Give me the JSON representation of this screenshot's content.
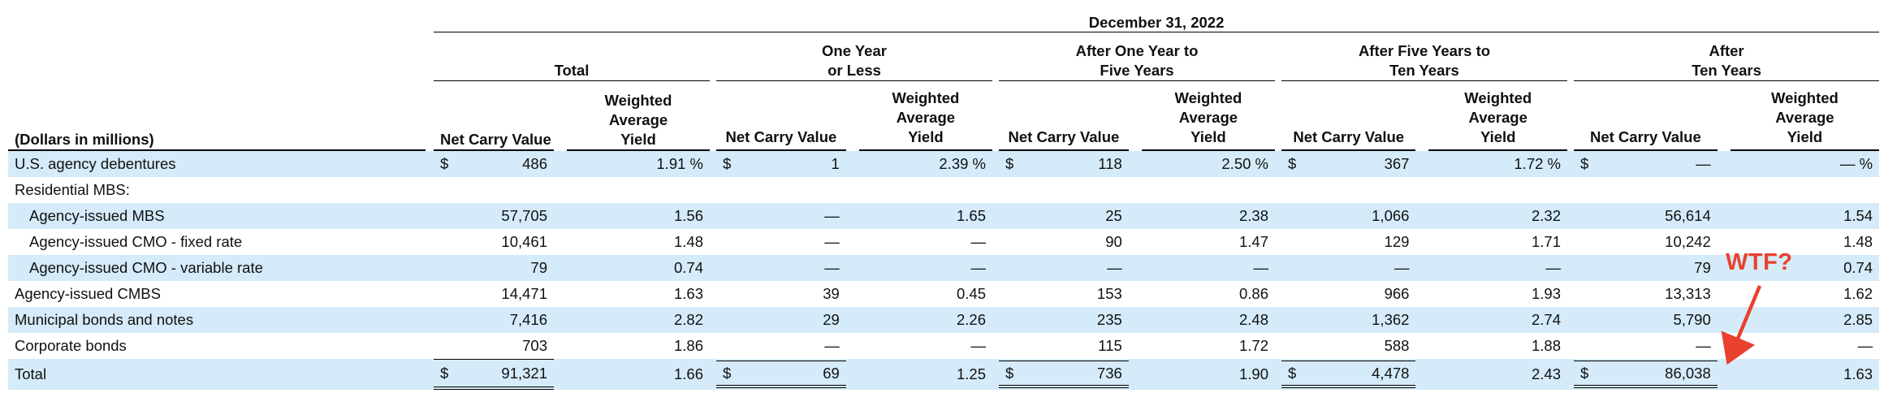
{
  "header": {
    "date": "December 31, 2022",
    "stub_label": "(Dollars in millions)",
    "groups": [
      {
        "line1": "",
        "line2": "Total"
      },
      {
        "line1": "One Year",
        "line2": "or Less"
      },
      {
        "line1": "After One Year to",
        "line2": "Five Years"
      },
      {
        "line1": "After Five Years to",
        "line2": "Ten Years"
      },
      {
        "line1": "After",
        "line2": "Ten Years"
      }
    ],
    "col_ncv": "Net Carry Value",
    "col_yield_l1": "Weighted",
    "col_yield_l2": "Average",
    "col_yield_l3": "Yield"
  },
  "rows": [
    {
      "label": "U.S. agency debentures",
      "indent": false,
      "shaded": true,
      "cells": [
        [
          "$",
          "486",
          "1.91 %"
        ],
        [
          "$",
          "1",
          "2.39 %"
        ],
        [
          "$",
          "118",
          "2.50 %"
        ],
        [
          "$",
          "367",
          "1.72 %"
        ],
        [
          "$",
          "—",
          "— %"
        ]
      ]
    },
    {
      "label": "Residential MBS:",
      "indent": false,
      "shaded": false,
      "cells": [
        [
          "",
          "",
          ""
        ],
        [
          "",
          "",
          ""
        ],
        [
          "",
          "",
          ""
        ],
        [
          "",
          "",
          ""
        ],
        [
          "",
          "",
          ""
        ]
      ]
    },
    {
      "label": "Agency-issued MBS",
      "indent": true,
      "shaded": true,
      "cells": [
        [
          "",
          "57,705",
          "1.56"
        ],
        [
          "",
          "—",
          "1.65"
        ],
        [
          "",
          "25",
          "2.38"
        ],
        [
          "",
          "1,066",
          "2.32"
        ],
        [
          "",
          "56,614",
          "1.54"
        ]
      ]
    },
    {
      "label": "Agency-issued CMO - fixed rate",
      "indent": true,
      "shaded": false,
      "cells": [
        [
          "",
          "10,461",
          "1.48"
        ],
        [
          "",
          "—",
          "—"
        ],
        [
          "",
          "90",
          "1.47"
        ],
        [
          "",
          "129",
          "1.71"
        ],
        [
          "",
          "10,242",
          "1.48"
        ]
      ]
    },
    {
      "label": "Agency-issued CMO - variable rate",
      "indent": true,
      "shaded": true,
      "cells": [
        [
          "",
          "79",
          "0.74"
        ],
        [
          "",
          "—",
          "—"
        ],
        [
          "",
          "—",
          "—"
        ],
        [
          "",
          "—",
          "—"
        ],
        [
          "",
          "79",
          "0.74"
        ]
      ]
    },
    {
      "label": "Agency-issued CMBS",
      "indent": false,
      "shaded": false,
      "cells": [
        [
          "",
          "14,471",
          "1.63"
        ],
        [
          "",
          "39",
          "0.45"
        ],
        [
          "",
          "153",
          "0.86"
        ],
        [
          "",
          "966",
          "1.93"
        ],
        [
          "",
          "13,313",
          "1.62"
        ]
      ]
    },
    {
      "label": "Municipal bonds and notes",
      "indent": false,
      "shaded": true,
      "cells": [
        [
          "",
          "7,416",
          "2.82"
        ],
        [
          "",
          "29",
          "2.26"
        ],
        [
          "",
          "235",
          "2.48"
        ],
        [
          "",
          "1,362",
          "2.74"
        ],
        [
          "",
          "5,790",
          "2.85"
        ]
      ]
    },
    {
      "label": "Corporate bonds",
      "indent": false,
      "shaded": false,
      "cells": [
        [
          "",
          "703",
          "1.86"
        ],
        [
          "",
          "—",
          "—"
        ],
        [
          "",
          "115",
          "1.72"
        ],
        [
          "",
          "588",
          "1.88"
        ],
        [
          "",
          "—",
          "—"
        ]
      ]
    }
  ],
  "total": {
    "label": "Total",
    "cells": [
      [
        "$",
        "91,321",
        "1.66"
      ],
      [
        "$",
        "69",
        "1.25"
      ],
      [
        "$",
        "736",
        "1.90"
      ],
      [
        "$",
        "4,478",
        "2.43"
      ],
      [
        "$",
        "86,038",
        "1.63"
      ]
    ]
  },
  "annotation": {
    "text": "WTF?",
    "color": "#e9412d"
  }
}
